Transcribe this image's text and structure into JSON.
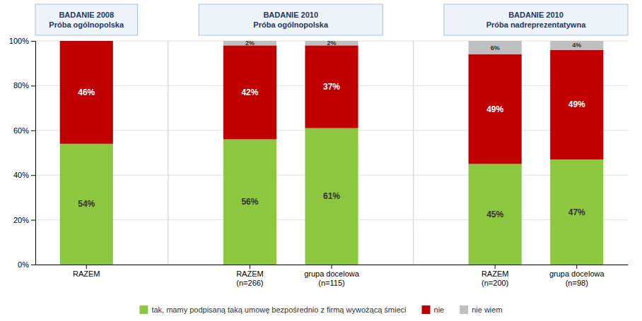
{
  "chart_data": {
    "type": "bar",
    "stacked": true,
    "data_labels": true,
    "grid": true,
    "legend": "bottom",
    "groups": [
      {
        "title": "BADANIE 2008\nPróba ogólnopolska",
        "categories": [
          "RAZEM"
        ]
      },
      {
        "title": "BADANIE 2010\nPróba ogólnopolska",
        "categories": [
          "RAZEM\n(n=266)",
          "grupa docelowa\n(n=115)"
        ]
      },
      {
        "title": "BADANIE 2010\nPróba nadreprezentatywna",
        "categories": [
          "RAZEM\n(n=200)",
          "grupa docelowa\n(n=98)"
        ]
      }
    ],
    "series": [
      {
        "name": "tak, mamy podpisaną taką umowę bezpośrednio z firmą wywożącą śmieci",
        "color": "#8DC63F",
        "values": [
          54,
          56,
          61,
          45,
          47
        ],
        "value_labels": [
          "54%",
          "56%",
          "61%",
          "45%",
          "47%"
        ]
      },
      {
        "name": "nie",
        "color": "#C00000",
        "values": [
          46,
          42,
          37,
          49,
          49
        ],
        "value_labels": [
          "46%",
          "42%",
          "37%",
          "49%",
          "49%"
        ]
      },
      {
        "name": "nie wiem",
        "color": "#BFBFBF",
        "values": [
          0,
          2,
          2,
          6,
          4
        ],
        "value_labels": [
          null,
          "2%",
          "2%",
          "6%",
          "4%"
        ]
      }
    ],
    "ylim": [
      0,
      100
    ],
    "yticks": [
      {
        "value": 0,
        "label": "0%"
      },
      {
        "value": 20,
        "label": "20%"
      },
      {
        "value": 40,
        "label": "40%"
      },
      {
        "value": 60,
        "label": "60%"
      },
      {
        "value": 80,
        "label": "80%"
      },
      {
        "value": 100,
        "label": "100%"
      }
    ]
  }
}
